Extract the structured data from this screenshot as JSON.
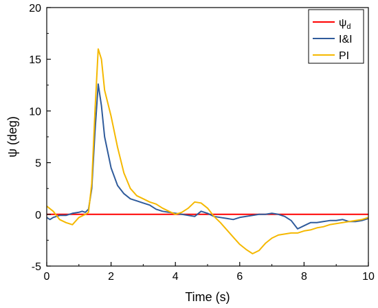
{
  "chart_data": {
    "type": "line",
    "title": "",
    "xlabel": "Time (s)",
    "ylabel": "ψ (deg)",
    "xlim": [
      0,
      10
    ],
    "ylim": [
      -5,
      20
    ],
    "x_ticks": [
      0,
      2,
      4,
      6,
      8,
      10
    ],
    "y_ticks": [
      -5,
      0,
      5,
      10,
      15,
      20
    ],
    "grid": false,
    "legend_position": "top-right",
    "series": [
      {
        "name": "ψd",
        "legend_main": "ψ",
        "legend_sub": "d",
        "color": "#ff0000",
        "points": [
          [
            0,
            0
          ],
          [
            10,
            0
          ]
        ]
      },
      {
        "name": "I&I",
        "color": "#2f5b9b",
        "points": [
          [
            0.0,
            -0.3
          ],
          [
            0.1,
            -0.5
          ],
          [
            0.2,
            -0.3
          ],
          [
            0.4,
            -0.1
          ],
          [
            0.6,
            -0.1
          ],
          [
            0.8,
            0.1
          ],
          [
            1.0,
            0.2
          ],
          [
            1.1,
            0.3
          ],
          [
            1.2,
            0.2
          ],
          [
            1.3,
            0.5
          ],
          [
            1.4,
            2.5
          ],
          [
            1.5,
            8.0
          ],
          [
            1.6,
            12.6
          ],
          [
            1.7,
            10.5
          ],
          [
            1.8,
            7.5
          ],
          [
            2.0,
            4.5
          ],
          [
            2.2,
            2.8
          ],
          [
            2.4,
            2.0
          ],
          [
            2.6,
            1.5
          ],
          [
            2.8,
            1.3
          ],
          [
            3.0,
            1.1
          ],
          [
            3.2,
            0.9
          ],
          [
            3.4,
            0.5
          ],
          [
            3.6,
            0.3
          ],
          [
            3.8,
            0.2
          ],
          [
            4.0,
            0.1
          ],
          [
            4.2,
            0.0
          ],
          [
            4.4,
            -0.1
          ],
          [
            4.6,
            -0.2
          ],
          [
            4.8,
            0.3
          ],
          [
            5.0,
            0.1
          ],
          [
            5.2,
            -0.2
          ],
          [
            5.4,
            -0.3
          ],
          [
            5.6,
            -0.4
          ],
          [
            5.8,
            -0.5
          ],
          [
            6.0,
            -0.3
          ],
          [
            6.2,
            -0.2
          ],
          [
            6.4,
            -0.1
          ],
          [
            6.6,
            0.0
          ],
          [
            6.8,
            0.0
          ],
          [
            7.0,
            0.1
          ],
          [
            7.2,
            0.0
          ],
          [
            7.4,
            -0.2
          ],
          [
            7.6,
            -0.6
          ],
          [
            7.8,
            -1.4
          ],
          [
            8.0,
            -1.1
          ],
          [
            8.2,
            -0.8
          ],
          [
            8.4,
            -0.8
          ],
          [
            8.6,
            -0.7
          ],
          [
            8.8,
            -0.6
          ],
          [
            9.0,
            -0.6
          ],
          [
            9.2,
            -0.5
          ],
          [
            9.4,
            -0.7
          ],
          [
            9.6,
            -0.7
          ],
          [
            9.8,
            -0.6
          ],
          [
            10.0,
            -0.4
          ]
        ]
      },
      {
        "name": "PI",
        "color": "#f5b800",
        "points": [
          [
            0.0,
            0.8
          ],
          [
            0.2,
            0.3
          ],
          [
            0.4,
            -0.5
          ],
          [
            0.6,
            -0.8
          ],
          [
            0.8,
            -1.0
          ],
          [
            1.0,
            -0.3
          ],
          [
            1.2,
            0.0
          ],
          [
            1.3,
            0.2
          ],
          [
            1.4,
            3.0
          ],
          [
            1.5,
            10.0
          ],
          [
            1.6,
            16.0
          ],
          [
            1.7,
            15.0
          ],
          [
            1.8,
            12.0
          ],
          [
            2.0,
            9.5
          ],
          [
            2.2,
            6.5
          ],
          [
            2.4,
            4.0
          ],
          [
            2.6,
            2.5
          ],
          [
            2.8,
            1.8
          ],
          [
            3.0,
            1.5
          ],
          [
            3.2,
            1.2
          ],
          [
            3.4,
            1.0
          ],
          [
            3.6,
            0.6
          ],
          [
            3.8,
            0.3
          ],
          [
            4.0,
            0.0
          ],
          [
            4.2,
            0.2
          ],
          [
            4.4,
            0.6
          ],
          [
            4.6,
            1.2
          ],
          [
            4.8,
            1.1
          ],
          [
            5.0,
            0.6
          ],
          [
            5.2,
            -0.2
          ],
          [
            5.4,
            -0.8
          ],
          [
            5.6,
            -1.5
          ],
          [
            5.8,
            -2.2
          ],
          [
            6.0,
            -2.9
          ],
          [
            6.2,
            -3.4
          ],
          [
            6.4,
            -3.8
          ],
          [
            6.6,
            -3.5
          ],
          [
            6.8,
            -2.8
          ],
          [
            7.0,
            -2.3
          ],
          [
            7.2,
            -2.0
          ],
          [
            7.4,
            -1.9
          ],
          [
            7.6,
            -1.8
          ],
          [
            7.8,
            -1.8
          ],
          [
            8.0,
            -1.6
          ],
          [
            8.2,
            -1.5
          ],
          [
            8.4,
            -1.3
          ],
          [
            8.6,
            -1.2
          ],
          [
            8.8,
            -1.0
          ],
          [
            9.0,
            -0.9
          ],
          [
            9.2,
            -0.8
          ],
          [
            9.4,
            -0.7
          ],
          [
            9.6,
            -0.6
          ],
          [
            9.8,
            -0.5
          ],
          [
            10.0,
            -0.3
          ]
        ]
      }
    ]
  }
}
